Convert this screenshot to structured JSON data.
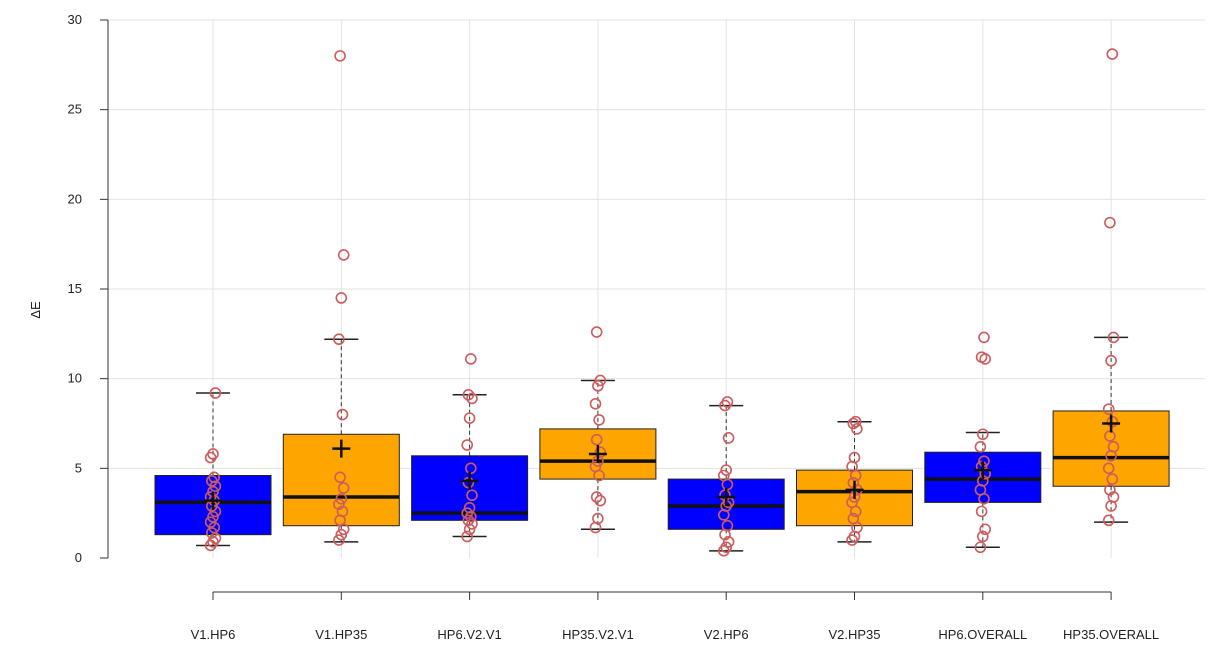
{
  "chart_data": {
    "type": "box",
    "title": "",
    "xlabel": "",
    "ylabel": "ΔE",
    "ylim": [
      0,
      30
    ],
    "yticks": [
      0,
      5,
      10,
      15,
      20,
      25,
      30
    ],
    "grid": true,
    "colors": {
      "blue": "#0000ff",
      "orange": "#ffa500",
      "outlier": "#cd5c5c",
      "grid": "#e3e3e3"
    },
    "categories": [
      "V1.HP6",
      "V1.HP35",
      "HP6.V2.V1",
      "HP35.V2.V1",
      "V2.HP6",
      "V2.HP35",
      "HP6.OVERALL",
      "HP35.OVERALL"
    ],
    "boxes": [
      {
        "label": "V1.HP6",
        "color": "blue",
        "whisker_low": 0.7,
        "q1": 1.3,
        "median": 3.1,
        "q3": 4.6,
        "whisker_high": 9.2,
        "mean": 3.2,
        "points": [
          0.7,
          0.9,
          1.1,
          1.4,
          1.7,
          2.0,
          2.3,
          2.6,
          2.9,
          3.2,
          3.4,
          3.7,
          4.0,
          4.3,
          4.5,
          5.6,
          5.8,
          9.2
        ]
      },
      {
        "label": "V1.HP35",
        "color": "orange",
        "whisker_low": 0.9,
        "q1": 1.8,
        "median": 3.4,
        "q3": 6.9,
        "whisker_high": 12.2,
        "mean": 6.1,
        "points": [
          1.0,
          1.3,
          1.6,
          2.1,
          2.6,
          3.0,
          3.3,
          3.9,
          4.5,
          8.0,
          12.2,
          14.5,
          16.9,
          28.0
        ]
      },
      {
        "label": "HP6.V2.V1",
        "color": "blue",
        "whisker_low": 1.2,
        "q1": 2.1,
        "median": 2.5,
        "q3": 5.7,
        "whisker_high": 9.1,
        "mean": 4.3,
        "points": [
          1.2,
          1.6,
          1.9,
          2.1,
          2.3,
          2.5,
          2.8,
          3.5,
          4.2,
          5.0,
          6.3,
          7.8,
          8.9,
          9.1,
          11.1
        ]
      },
      {
        "label": "HP35.V2.V1",
        "color": "orange",
        "whisker_low": 1.6,
        "q1": 4.4,
        "median": 5.4,
        "q3": 7.2,
        "whisker_high": 9.9,
        "mean": 5.8,
        "points": [
          1.7,
          2.2,
          3.2,
          3.4,
          4.6,
          5.1,
          5.4,
          5.9,
          6.6,
          7.7,
          8.6,
          9.6,
          9.9,
          12.6
        ]
      },
      {
        "label": "V2.HP6",
        "color": "blue",
        "whisker_low": 0.4,
        "q1": 1.6,
        "median": 2.9,
        "q3": 4.4,
        "whisker_high": 8.5,
        "mean": 3.4,
        "points": [
          0.4,
          0.6,
          0.9,
          1.3,
          1.8,
          2.4,
          2.9,
          3.1,
          3.5,
          4.1,
          4.6,
          4.9,
          6.7,
          8.5,
          8.7
        ]
      },
      {
        "label": "V2.HP35",
        "color": "orange",
        "whisker_low": 0.9,
        "q1": 1.8,
        "median": 3.7,
        "q3": 4.9,
        "whisker_high": 7.6,
        "mean": 3.8,
        "points": [
          1.0,
          1.2,
          1.7,
          2.2,
          2.6,
          3.1,
          3.4,
          3.8,
          4.2,
          4.6,
          5.1,
          5.6,
          7.2,
          7.5,
          7.6
        ]
      },
      {
        "label": "HP6.OVERALL",
        "color": "blue",
        "whisker_low": 0.6,
        "q1": 3.1,
        "median": 4.4,
        "q3": 5.9,
        "whisker_high": 7.0,
        "mean": 4.9,
        "points": [
          0.6,
          1.2,
          1.6,
          2.6,
          3.3,
          3.8,
          4.3,
          4.7,
          5.1,
          5.4,
          6.2,
          6.9,
          11.1,
          11.2,
          12.3
        ]
      },
      {
        "label": "HP35.OVERALL",
        "color": "orange",
        "whisker_low": 2.0,
        "q1": 4.0,
        "median": 5.6,
        "q3": 8.2,
        "whisker_high": 12.3,
        "mean": 7.5,
        "points": [
          2.1,
          2.9,
          3.4,
          3.8,
          4.4,
          5.0,
          5.7,
          6.2,
          6.8,
          7.6,
          8.3,
          11.0,
          12.3,
          18.7,
          28.1
        ]
      }
    ]
  }
}
